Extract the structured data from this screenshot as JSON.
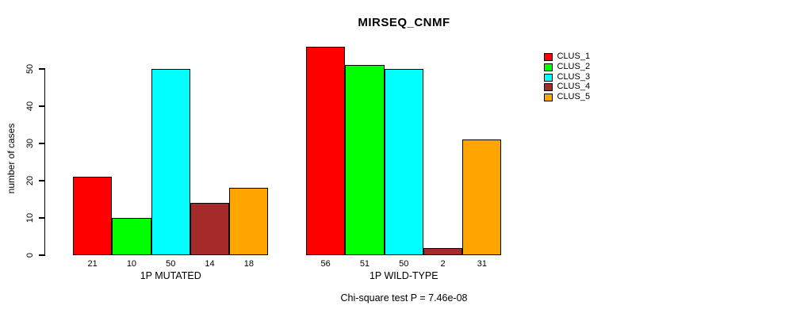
{
  "title": "MIRSEQ_CNMF",
  "subtitle": "Chi-square test P = 7.46e-08",
  "y_axis": {
    "label": "number of cases",
    "ticks": [
      0,
      10,
      20,
      30,
      40,
      50
    ]
  },
  "legend": {
    "entries": [
      {
        "label": "CLUS_1",
        "color": "#FF0000"
      },
      {
        "label": "CLUS_2",
        "color": "#00FF00"
      },
      {
        "label": "CLUS_3",
        "color": "#00FFFF"
      },
      {
        "label": "CLUS_4",
        "color": "#A52A2A"
      },
      {
        "label": "CLUS_5",
        "color": "#FFA500"
      }
    ]
  },
  "chart_data": {
    "type": "bar",
    "title": "MIRSEQ_CNMF",
    "xlabel": "",
    "ylabel": "number of cases",
    "ylim": [
      0,
      50
    ],
    "grid": false,
    "legend_position": "right",
    "categories": [
      "1P MUTATED",
      "1P WILD-TYPE"
    ],
    "series": [
      {
        "name": "CLUS_1",
        "color": "#FF0000",
        "values": [
          21,
          56
        ]
      },
      {
        "name": "CLUS_2",
        "color": "#00FF00",
        "values": [
          10,
          51
        ]
      },
      {
        "name": "CLUS_3",
        "color": "#00FFFF",
        "values": [
          50,
          50
        ]
      },
      {
        "name": "CLUS_4",
        "color": "#A52A2A",
        "values": [
          14,
          2
        ]
      },
      {
        "name": "CLUS_5",
        "color": "#FFA500",
        "values": [
          18,
          31
        ]
      }
    ],
    "bar_value_labels": {
      "1P MUTATED": [
        21,
        10,
        50,
        14,
        18
      ],
      "1P WILD-TYPE": [
        56,
        51,
        50,
        2,
        31
      ]
    },
    "annotation": "Chi-square test P = 7.46e-08"
  }
}
